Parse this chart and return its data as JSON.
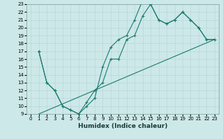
{
  "xlabel": "Humidex (Indice chaleur)",
  "xlim": [
    -0.5,
    23.5
  ],
  "ylim": [
    9,
    23
  ],
  "xticks": [
    0,
    1,
    2,
    3,
    4,
    5,
    6,
    7,
    8,
    9,
    10,
    11,
    12,
    13,
    14,
    15,
    16,
    17,
    18,
    19,
    20,
    21,
    22,
    23
  ],
  "yticks": [
    9,
    10,
    11,
    12,
    13,
    14,
    15,
    16,
    17,
    18,
    19,
    20,
    21,
    22,
    23
  ],
  "bg_color": "#cde8e8",
  "line_color": "#1a7a6e",
  "grid_color": "#b8d8d8",
  "series1_x": [
    1,
    2,
    3,
    4,
    5,
    6,
    7,
    8,
    9,
    10,
    11,
    12,
    13,
    14,
    15,
    16,
    17,
    18,
    19,
    20,
    21,
    22,
    23
  ],
  "series1_y": [
    17,
    13,
    12,
    10,
    9.5,
    9,
    10,
    11,
    15,
    17.5,
    18.5,
    19,
    21,
    23.5,
    23,
    21,
    20.5,
    21,
    22,
    21,
    20,
    18.5,
    18.5
  ],
  "series2_x": [
    1,
    2,
    3,
    4,
    5,
    6,
    7,
    8,
    9,
    10,
    11,
    12,
    13,
    14,
    15,
    16,
    17,
    18,
    19,
    20,
    21,
    22,
    23
  ],
  "series2_y": [
    17,
    13,
    12,
    10,
    9.5,
    9,
    10.5,
    12,
    13,
    16,
    16,
    18.5,
    19,
    21.5,
    23,
    21,
    20.5,
    21,
    22,
    21,
    20,
    18.5,
    18.5
  ],
  "series3_x": [
    1,
    23
  ],
  "series3_y": [
    9,
    18.5
  ],
  "tick_fontsize": 5.0,
  "xlabel_fontsize": 6.5
}
